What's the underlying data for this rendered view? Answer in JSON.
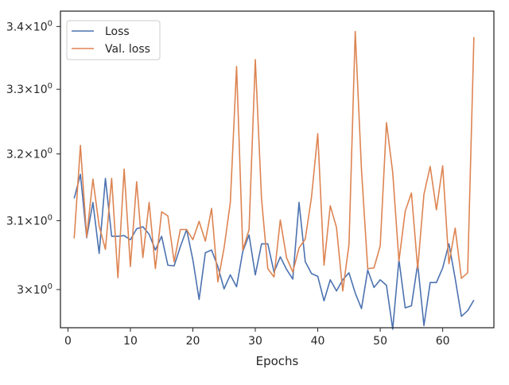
{
  "chart_data": {
    "type": "line",
    "xlabel": "Epochs",
    "ylabel": "",
    "xlim": [
      -1.2,
      68.2
    ],
    "ylim": [
      2.946,
      3.425
    ],
    "y_scale": "log",
    "grid": false,
    "legend_position": "top-left",
    "x_ticks": [
      0,
      10,
      20,
      30,
      40,
      50,
      60
    ],
    "x_tick_labels": [
      "0",
      "10",
      "20",
      "30",
      "40",
      "50",
      "60"
    ],
    "y_ticks": [
      {
        "value": 3.0,
        "mantissa": "3",
        "exponent": "0"
      },
      {
        "value": 3.1,
        "mantissa": "3.1",
        "exponent": "0"
      },
      {
        "value": 3.2,
        "mantissa": "3.2",
        "exponent": "0"
      },
      {
        "value": 3.3,
        "mantissa": "3.3",
        "exponent": "0"
      },
      {
        "value": 3.4,
        "mantissa": "3.4",
        "exponent": "0"
      }
    ],
    "y_tick_times": "×10",
    "series": [
      {
        "name": "Loss",
        "color": "#4c72b0",
        "x": [
          1,
          2,
          3,
          4,
          5,
          6,
          7,
          8,
          9,
          10,
          11,
          12,
          13,
          14,
          15,
          16,
          17,
          18,
          19,
          20,
          21,
          22,
          23,
          24,
          25,
          26,
          27,
          28,
          29,
          30,
          31,
          32,
          33,
          34,
          35,
          36,
          37,
          38,
          39,
          40,
          41,
          42,
          43,
          44,
          45,
          46,
          47,
          48,
          49,
          50,
          51,
          52,
          53,
          54,
          55,
          56,
          57,
          58,
          59,
          60,
          61,
          62,
          63,
          64,
          65
        ],
        "values": [
          3.133,
          3.169,
          3.075,
          3.127,
          3.052,
          3.163,
          3.077,
          3.077,
          3.078,
          3.072,
          3.088,
          3.091,
          3.08,
          3.057,
          3.077,
          3.035,
          3.034,
          3.062,
          3.087,
          3.043,
          2.986,
          3.053,
          3.057,
          3.033,
          3.001,
          3.021,
          3.004,
          3.055,
          3.079,
          3.021,
          3.066,
          3.066,
          3.025,
          3.047,
          3.029,
          3.015,
          3.127,
          3.04,
          3.023,
          3.019,
          2.984,
          3.014,
          2.998,
          3.014,
          3.024,
          2.995,
          2.973,
          3.028,
          3.003,
          3.014,
          3.006,
          2.944,
          3.043,
          2.974,
          2.977,
          3.037,
          2.949,
          3.01,
          3.01,
          3.031,
          3.066,
          3.016,
          2.962,
          2.97,
          2.985
        ]
      },
      {
        "name": "Val. loss",
        "color": "#dd8452",
        "x": [
          1,
          2,
          3,
          4,
          5,
          6,
          7,
          8,
          9,
          10,
          11,
          12,
          13,
          14,
          15,
          16,
          17,
          18,
          19,
          20,
          21,
          22,
          23,
          24,
          25,
          26,
          27,
          28,
          29,
          30,
          31,
          32,
          33,
          34,
          35,
          36,
          37,
          38,
          39,
          40,
          41,
          42,
          43,
          44,
          45,
          46,
          47,
          48,
          49,
          50,
          51,
          52,
          53,
          54,
          55,
          56,
          57,
          58,
          59,
          60,
          61,
          62,
          63,
          64,
          65
        ],
        "values": [
          3.074,
          3.213,
          3.076,
          3.162,
          3.092,
          3.058,
          3.163,
          3.017,
          3.177,
          3.033,
          3.158,
          3.046,
          3.127,
          3.03,
          3.113,
          3.107,
          3.04,
          3.087,
          3.087,
          3.072,
          3.099,
          3.07,
          3.118,
          3.011,
          3.06,
          3.127,
          3.336,
          3.057,
          3.087,
          3.347,
          3.132,
          3.03,
          3.018,
          3.101,
          3.046,
          3.025,
          3.06,
          3.073,
          3.135,
          3.231,
          3.035,
          3.122,
          3.09,
          2.998,
          3.065,
          3.392,
          3.176,
          3.03,
          3.031,
          3.063,
          3.248,
          3.172,
          3.041,
          3.114,
          3.141,
          3.03,
          3.139,
          3.181,
          3.116,
          3.182,
          3.037,
          3.089,
          3.016,
          3.024,
          3.383
        ]
      }
    ]
  }
}
